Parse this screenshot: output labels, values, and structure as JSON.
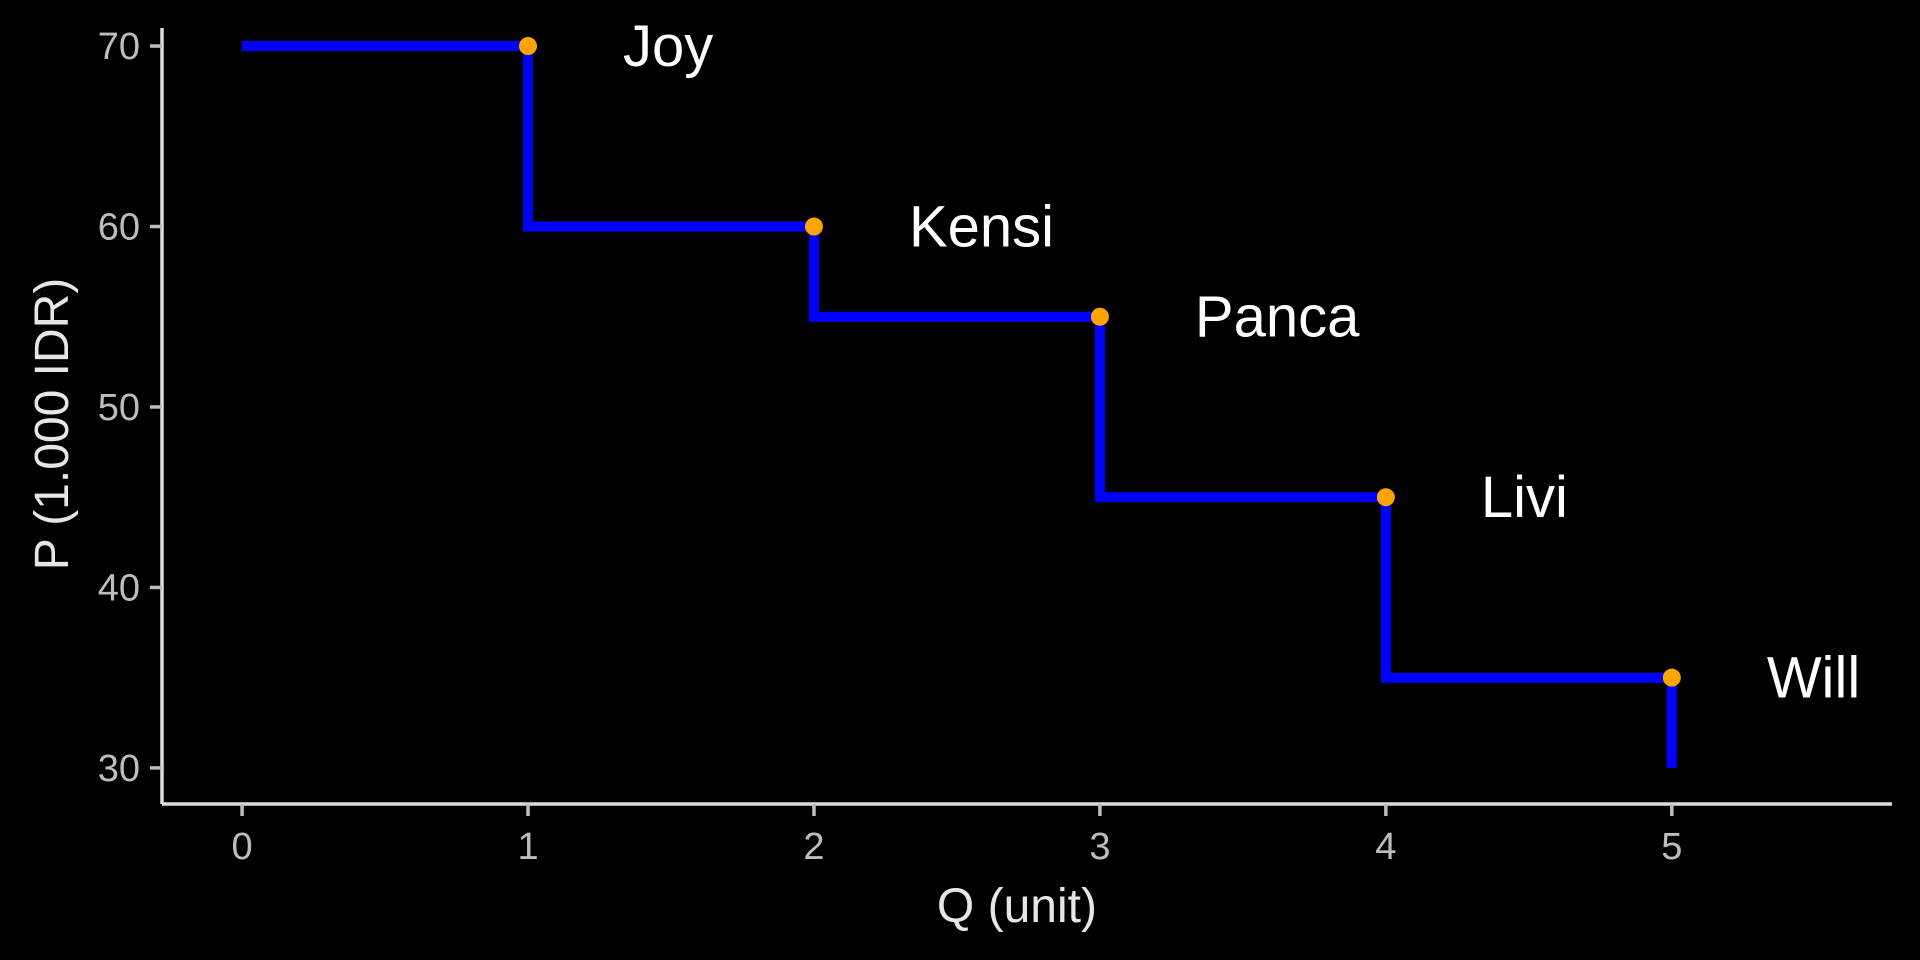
{
  "chart_data": {
    "type": "line",
    "style": "step",
    "title": "",
    "xlabel": "Q (unit)",
    "ylabel": "P (1.000 IDR)",
    "xlim": [
      -0.28,
      5.77
    ],
    "ylim": [
      28,
      71
    ],
    "xticks": [
      0,
      1,
      2,
      3,
      4,
      5
    ],
    "yticks": [
      30,
      40,
      50,
      60,
      70
    ],
    "grid": false,
    "background": "#000000",
    "line_color": "#0000ff",
    "point_color": "#ffa500",
    "step_path": [
      {
        "q": 0,
        "p": 70
      },
      {
        "q": 1,
        "p": 70
      },
      {
        "q": 1,
        "p": 60
      },
      {
        "q": 2,
        "p": 60
      },
      {
        "q": 2,
        "p": 55
      },
      {
        "q": 3,
        "p": 55
      },
      {
        "q": 3,
        "p": 45
      },
      {
        "q": 4,
        "p": 45
      },
      {
        "q": 4,
        "p": 35
      },
      {
        "q": 5,
        "p": 35
      },
      {
        "q": 5,
        "p": 30
      }
    ],
    "points": [
      {
        "name": "Joy",
        "q": 1,
        "p": 70
      },
      {
        "name": "Kensi",
        "q": 2,
        "p": 60
      },
      {
        "name": "Panca",
        "q": 3,
        "p": 55
      },
      {
        "name": "Livi",
        "q": 4,
        "p": 45
      },
      {
        "name": "Will",
        "q": 5,
        "p": 35
      }
    ]
  }
}
